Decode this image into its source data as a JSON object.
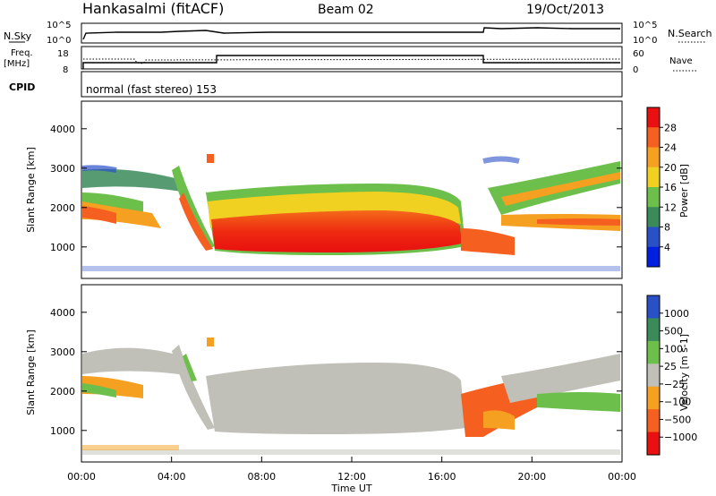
{
  "header": {
    "site": "Hankasalmi (fitACF)",
    "beam": "Beam 02",
    "date": "19/Oct/2013"
  },
  "noise_panel": {
    "left_label": "N.Sky",
    "right_label": "N.Search",
    "left_ticks": [
      "10^5",
      "10^0"
    ],
    "right_ticks": [
      "10^5",
      "10^0"
    ]
  },
  "freq_panel": {
    "left_label_line1": "Freq.",
    "left_label_line2": "[MHz]",
    "right_label": "Nave",
    "left_ticks": [
      "18",
      "8"
    ],
    "right_ticks": [
      "60",
      "0"
    ]
  },
  "cpid": {
    "label": "CPID",
    "text": "normal (fast stereo) 153"
  },
  "power_panel": {
    "ylabel": "Slant Range [km]",
    "yticks": [
      "4000",
      "3000",
      "2000",
      "1000"
    ],
    "colorbar_label": "Power [dB]",
    "colorbar_ticks": [
      "28",
      "24",
      "20",
      "16",
      "12",
      "8",
      "4"
    ]
  },
  "velocity_panel": {
    "ylabel": "Slant Range [km]",
    "yticks": [
      "4000",
      "3000",
      "2000",
      "1000"
    ],
    "colorbar_label": "Velocity [m s-1]",
    "colorbar_ticks": [
      "1000",
      "500",
      "100",
      "25",
      "−25",
      "−100",
      "−500",
      "−1000"
    ]
  },
  "xaxis": {
    "label": "Time UT",
    "ticks": [
      "00:00",
      "04:00",
      "08:00",
      "12:00",
      "16:00",
      "20:00",
      "00:00"
    ]
  },
  "chart_data": [
    {
      "type": "heatmap",
      "title": "Power",
      "xlabel": "Time UT",
      "ylabel": "Slant Range [km]",
      "xlim": [
        0,
        24
      ],
      "ylim": [
        200,
        4700
      ],
      "colorbar_label": "Power [dB]",
      "colorbar_range": [
        0,
        32
      ],
      "colorscale": [
        "#0020e0",
        "#2a50c8",
        "#3a8a5a",
        "#6cbf4a",
        "#f0d020",
        "#f5a020",
        "#f56020",
        "#e81010"
      ],
      "features": [
        {
          "desc": "main echo band",
          "time_range": [
            6,
            16.5
          ],
          "range_km": [
            900,
            1800
          ],
          "power_db": 28
        },
        {
          "desc": "upper scatter",
          "time_range": [
            0,
            24
          ],
          "range_km": [
            2000,
            2800
          ],
          "power_db": 12
        }
      ]
    },
    {
      "type": "heatmap",
      "title": "Velocity",
      "xlabel": "Time UT",
      "ylabel": "Slant Range [km]",
      "xlim": [
        0,
        24
      ],
      "ylim": [
        200,
        4700
      ],
      "colorbar_label": "Velocity [m s-1]",
      "colorbar_range": [
        -1000,
        1000
      ],
      "colorscale": [
        "#e81010",
        "#f56020",
        "#f5a020",
        "#c0c0b8",
        "#6cbf4a",
        "#3a8a5a",
        "#2a50c8"
      ],
      "features": [
        {
          "desc": "ground scatter (near zero)",
          "time_range": [
            4,
            17
          ],
          "range_km": [
            900,
            2200
          ],
          "velocity": 0
        },
        {
          "desc": "negative flow",
          "time_range": [
            17,
            21
          ],
          "range_km": [
            900,
            1700
          ],
          "velocity": -300
        }
      ]
    }
  ]
}
